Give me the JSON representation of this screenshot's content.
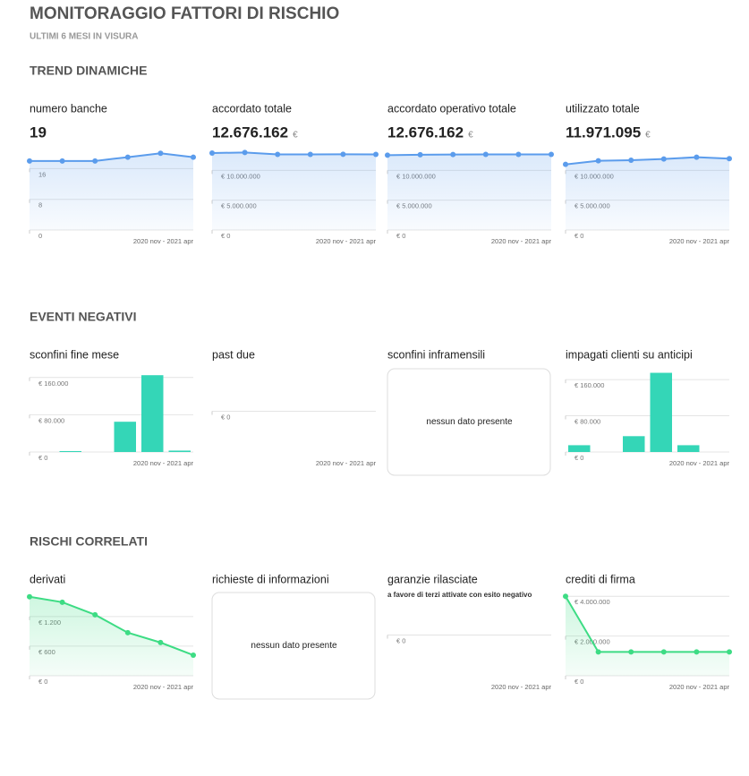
{
  "header": {
    "title": "MONITORAGGIO FATTORI DI RISCHIO",
    "subtitle": "ULTIMI 6 MESI IN VISURA"
  },
  "sections": [
    {
      "title": "TREND DINAMICHE",
      "chart_data": [
        {
          "type": "line",
          "title": "numero banche",
          "headline": "19",
          "color": "#5b9cec",
          "x_label": "2020 nov - 2021 apr",
          "values": [
            18,
            18,
            18,
            19,
            20,
            19
          ],
          "ylim": [
            0,
            21
          ],
          "yticks": [
            0,
            8,
            16
          ]
        },
        {
          "type": "line",
          "title": "accordato totale",
          "headline": "12.676.162",
          "headline_unit": "€",
          "color": "#5b9cec",
          "x_label": "2020 nov - 2021 apr",
          "values": [
            12900000,
            13000000,
            12676162,
            12676162,
            12700000,
            12676162
          ],
          "ylim": [
            0,
            13500000
          ],
          "yticks": [
            {
              "value": 0,
              "label": "€ 0"
            },
            {
              "value": 5000000,
              "label": "€ 5.000.000"
            },
            {
              "value": 10000000,
              "label": "€ 10.000.000"
            }
          ]
        },
        {
          "type": "line",
          "title": "accordato operativo totale",
          "headline": "12.676.162",
          "headline_unit": "€",
          "color": "#5b9cec",
          "x_label": "2020 nov - 2021 apr",
          "values": [
            12550000,
            12620000,
            12650000,
            12676162,
            12676162,
            12676162
          ],
          "ylim": [
            0,
            13500000
          ],
          "yticks": [
            {
              "value": 0,
              "label": "€ 0"
            },
            {
              "value": 5000000,
              "label": "€ 5.000.000"
            },
            {
              "value": 10000000,
              "label": "€ 10.000.000"
            }
          ]
        },
        {
          "type": "line",
          "title": "utilizzato totale",
          "headline": "11.971.095",
          "headline_unit": "€",
          "color": "#5b9cec",
          "x_label": "2020 nov - 2021 apr",
          "values": [
            11000000,
            11600000,
            11700000,
            11900000,
            12200000,
            11971095
          ],
          "ylim": [
            0,
            13500000
          ],
          "yticks": [
            {
              "value": 0,
              "label": "€ 0"
            },
            {
              "value": 5000000,
              "label": "€ 5.000.000"
            },
            {
              "value": 10000000,
              "label": "€ 10.000.000"
            }
          ]
        }
      ]
    },
    {
      "title": "EVENTI NEGATIVI",
      "chart_data": [
        {
          "type": "bar",
          "title": "sconfini fine mese",
          "color": "#34d6b7",
          "x_label": "2020 nov - 2021 apr",
          "values": [
            0,
            2000,
            0,
            65000,
            165000,
            3000
          ],
          "ylim": [
            0,
            175000
          ],
          "yticks": [
            {
              "value": 0,
              "label": "€ 0"
            },
            {
              "value": 80000,
              "label": "€ 80.000"
            },
            {
              "value": 160000,
              "label": "€ 160.000"
            }
          ]
        },
        {
          "type": "line",
          "title": "past due",
          "color": "#34d6b7",
          "x_label": "2020 nov - 2021 apr",
          "values": [],
          "ylim": [
            -1,
            1
          ],
          "yticks": [
            {
              "value": 0,
              "label": "€ 0"
            }
          ]
        },
        {
          "type": "empty",
          "title": "sconfini inframensili",
          "message": "nessun dato presente"
        },
        {
          "type": "bar",
          "title": "impagati clienti su anticipi",
          "color": "#34d6b7",
          "x_label": "2020 nov - 2021 apr",
          "values": [
            15000,
            0,
            35000,
            175000,
            15000,
            0
          ],
          "ylim": [
            0,
            180000
          ],
          "yticks": [
            {
              "value": 0,
              "label": "€ 0"
            },
            {
              "value": 80000,
              "label": "€ 80.000"
            },
            {
              "value": 160000,
              "label": "€ 160.000"
            }
          ]
        }
      ]
    },
    {
      "title": "RISCHI CORRELATI",
      "chart_data": [
        {
          "type": "line",
          "title": "derivati",
          "color": "#3ddc84",
          "x_label": "2020 nov - 2021 apr",
          "values": [
            1600,
            1490,
            1236,
            873,
            673,
            418
          ],
          "ylim": [
            0,
            1650
          ],
          "yticks": [
            {
              "value": 0,
              "label": "€ 0"
            },
            {
              "value": 600,
              "label": "€ 600"
            },
            {
              "value": 1200,
              "label": "€ 1.200"
            }
          ]
        },
        {
          "type": "empty",
          "title": "richieste di informazioni",
          "message": "nessun dato presente"
        },
        {
          "type": "line",
          "title": "garanzie rilasciate",
          "subtitle": "a favore di terzi attivate con esito negativo",
          "color": "#3ddc84",
          "x_label": "2020 nov - 2021 apr",
          "values": [],
          "ylim": [
            -1,
            1
          ],
          "yticks": [
            {
              "value": 0,
              "label": "€ 0"
            }
          ]
        },
        {
          "type": "line",
          "title": "crediti di firma",
          "color": "#3ddc84",
          "x_label": "2020 nov - 2021 apr",
          "values": [
            4000000,
            1200000,
            1200000,
            1200000,
            1200000,
            1200000
          ],
          "ylim": [
            0,
            4100000
          ],
          "yticks": [
            {
              "value": 0,
              "label": "€ 0"
            },
            {
              "value": 2000000,
              "label": "€ 2.000.000"
            },
            {
              "value": 4000000,
              "label": "€ 4.000.000"
            }
          ]
        }
      ]
    }
  ]
}
